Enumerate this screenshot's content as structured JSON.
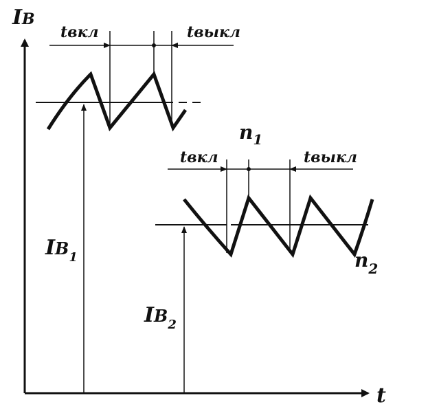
{
  "axes": {
    "y_label": "I",
    "y_label_sub": "B",
    "x_label": "t"
  },
  "top_timing": {
    "left_label": "tвкл",
    "right_label": "tвыкл"
  },
  "bottom_timing": {
    "left_label": "tвкл",
    "right_label": "tвыкл"
  },
  "levels": {
    "upper_label": "I",
    "upper_label_sub": "B",
    "upper_label_index": "1",
    "lower_label": "I",
    "lower_label_sub": "B",
    "lower_label_index": "2"
  },
  "points": {
    "n1_label": "n",
    "n1_index": "1",
    "n2_label": "n",
    "n2_index": "2"
  },
  "colors": {
    "ink": "#111111",
    "background": "#ffffff"
  }
}
